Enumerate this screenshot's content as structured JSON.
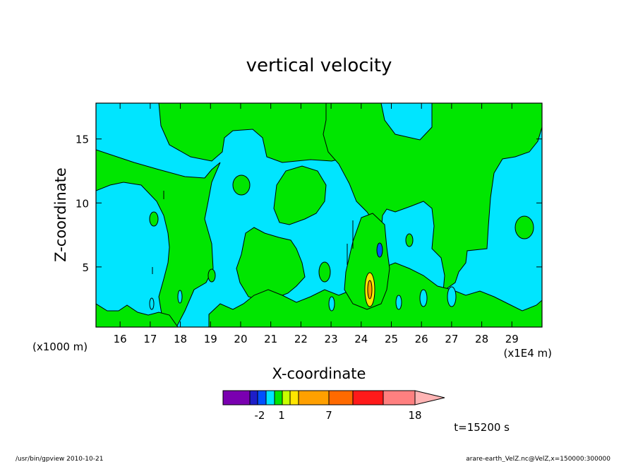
{
  "chart_data": {
    "type": "heatmap",
    "title": "vertical velocity",
    "xlabel": "X-coordinate",
    "ylabel": "Z-coordinate",
    "x_unit_left": "(x1000 m)",
    "x_unit_right": "(x1E4 m)",
    "x_ticks": [
      "16",
      "17",
      "18",
      "19",
      "20",
      "21",
      "22",
      "23",
      "24",
      "25",
      "26",
      "27",
      "28",
      "29"
    ],
    "y_ticks": [
      "5",
      "10",
      "15"
    ],
    "xlim": [
      15.2,
      30.0
    ],
    "ylim": [
      0.3,
      17.8
    ],
    "colorbar": {
      "colors": [
        "#7a00b0",
        "#1e1ec8",
        "#0050ff",
        "#00e5ff",
        "#00e600",
        "#c8ff00",
        "#ffe600",
        "#ffa000",
        "#ff6a00",
        "#ff1a1a",
        "#ff8080",
        "#ffb4b4"
      ],
      "labels": [
        "-2",
        "1",
        "7",
        "18"
      ]
    },
    "fill_colors": {
      "background": "#00e5ff",
      "positive": "#00e600",
      "negative": "#0050ff",
      "high": "#ffe600",
      "peak": "#ffa000"
    },
    "time_label": "t=15200 s"
  },
  "footer": {
    "left": "/usr/bin/gpview   2010-10-21",
    "right": "arare-earth_VelZ.nc@VelZ,x=150000:300000"
  }
}
